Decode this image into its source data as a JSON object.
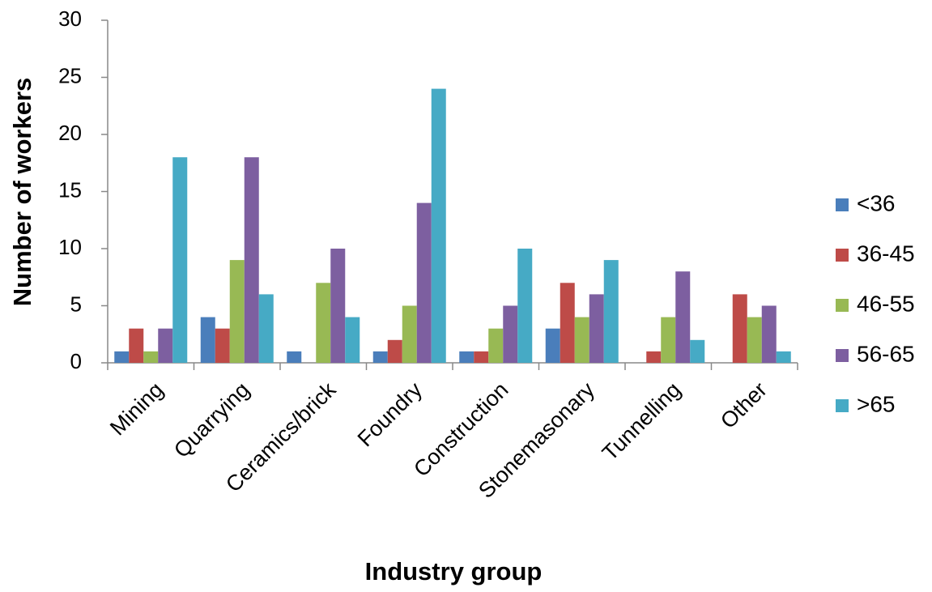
{
  "chart_data": {
    "type": "bar",
    "x_label": "Industry group",
    "y_label": "Number of workers",
    "categories": [
      "Mining",
      "Quarrying",
      "Ceramics/brick",
      "Foundry",
      "Construction",
      "Stonemasonary",
      "Tunnelling",
      "Other"
    ],
    "series": [
      {
        "name": "<36",
        "color": "#4a7ebb",
        "values": [
          1,
          4,
          1,
          1,
          1,
          3,
          0,
          0
        ]
      },
      {
        "name": "36-45",
        "color": "#be4b48",
        "values": [
          3,
          3,
          0,
          2,
          1,
          7,
          1,
          6
        ]
      },
      {
        "name": "46-55",
        "color": "#98b954",
        "values": [
          1,
          9,
          7,
          5,
          3,
          4,
          4,
          4
        ]
      },
      {
        "name": "56-65",
        "color": "#7d5fa0",
        "values": [
          3,
          18,
          10,
          14,
          5,
          6,
          8,
          5
        ]
      },
      {
        "name": ">65",
        "color": "#46aac5",
        "values": [
          18,
          6,
          4,
          24,
          10,
          9,
          2,
          1
        ]
      }
    ],
    "ylim": [
      0,
      30
    ],
    "yticks": [
      0,
      5,
      10,
      15,
      20,
      25,
      30
    ],
    "grid": false,
    "legend": "right"
  }
}
